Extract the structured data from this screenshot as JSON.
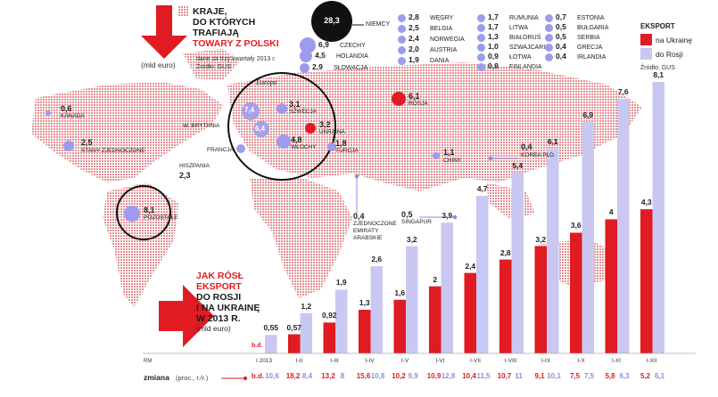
{
  "header": {
    "title_line1": "KRAJE,",
    "title_line2": "DO KTÓRYCH",
    "title_line3": "TRAFIAJĄ",
    "title_line4": "TOWARY Z POLSKI",
    "unit": "(mld euro)",
    "note_line1": "dane za trzy kwartały 2013 r.",
    "note_line2": "Źródło: GUS"
  },
  "top_country": {
    "value": "28,3",
    "name": "NIEMCY"
  },
  "legend_col1": [
    {
      "value": "6,9",
      "name": "CZECHY"
    },
    {
      "value": "4,5",
      "name": "HOLANDIA"
    },
    {
      "value": "2,9",
      "name": "SŁOWACJA"
    }
  ],
  "legend_col2": [
    {
      "value": "2,8",
      "name": "WĘGRY"
    },
    {
      "value": "2,5",
      "name": "BELGIA"
    },
    {
      "value": "2,4",
      "name": "NORWEGIA"
    },
    {
      "value": "2,0",
      "name": "AUSTRIA"
    },
    {
      "value": "1,9",
      "name": "DANIA"
    }
  ],
  "legend_col3": [
    {
      "value": "1,7",
      "name": "RUMUNIA"
    },
    {
      "value": "1,7",
      "name": "LITWA"
    },
    {
      "value": "1,3",
      "name": "BIAŁORUŚ"
    },
    {
      "value": "1,0",
      "name": "SZWAJCARIA"
    },
    {
      "value": "0,9",
      "name": "ŁOTWA"
    },
    {
      "value": "0,8",
      "name": "FINLANDIA"
    }
  ],
  "legend_col4": [
    {
      "value": "0,7",
      "name": "ESTONIA"
    },
    {
      "value": "0,5",
      "name": "BUŁGARIA"
    },
    {
      "value": "0,5",
      "name": "SERBIA"
    },
    {
      "value": "0,4",
      "name": "GRECJA"
    },
    {
      "value": "0,4",
      "name": "IRLANDIA"
    }
  ],
  "export_legend": {
    "title": "EKSPORT",
    "ukraine": "na Ukrainę",
    "russia": "do Rosji",
    "source": "Źródło: GUS"
  },
  "map": {
    "europe_label": "Europa",
    "countries": [
      {
        "value": "0,6",
        "name": "KANADA"
      },
      {
        "value": "2,5",
        "name": "STANY ZJEDNOCZONE"
      },
      {
        "value": "8,1",
        "name": "POZOSTAŁE"
      },
      {
        "value": "7,4",
        "name": "W. BRYTANIA"
      },
      {
        "value": "6,4",
        "name": "FRANCJA"
      },
      {
        "value": "2,3",
        "name": "HISZPANIA"
      },
      {
        "value": "3,1",
        "name": "SZWECJA"
      },
      {
        "value": "4,8",
        "name": "WŁOCHY"
      },
      {
        "value": "3,2",
        "name": "UKRAINA"
      },
      {
        "value": "1,8",
        "name": "TURCJA"
      },
      {
        "value": "6,1",
        "name": "ROSJA"
      },
      {
        "value": "1,1",
        "name": "CHINY"
      },
      {
        "value": "0,4",
        "name": "KOREA PŁD."
      },
      {
        "value": "0,4",
        "name": "ZJEDNOCZONE EMIRATY ARABSKIE"
      },
      {
        "value": "0,5",
        "name": "SINGAPUR"
      }
    ]
  },
  "growth_title": {
    "line1": "JAK RÓSŁ",
    "line2": "EKSPORT",
    "line3": "DO ROSJI",
    "line4": "I NA UKRAINĘ",
    "line5": "W 2013 R.",
    "unit": "(mld euro)"
  },
  "colors": {
    "ukraine": "#e11b22",
    "russia": "#c9c8f3",
    "bubble": "#9d9bec",
    "map": "#e8a7a9"
  },
  "axis_note": "RM",
  "change_row": {
    "label": "zmiana",
    "sub": "(proc., r./r.)"
  },
  "chart_data": {
    "type": "bar",
    "title": "Jak rósł eksport do Rosji i na Ukrainę w 2013 r.",
    "ylabel": "mld euro",
    "categories": [
      "I 2013",
      "I-II",
      "I-III",
      "I-IV",
      "I-V",
      "I-VI",
      "I-VII",
      "I-VIII",
      "I-IX",
      "I-X",
      "I-XI",
      "I-XII"
    ],
    "series": [
      {
        "name": "na Ukrainę",
        "values": [
          null,
          0.57,
          0.92,
          1.3,
          1.6,
          2,
          2.4,
          2.8,
          3.2,
          3.6,
          4,
          4.3
        ],
        "labels": [
          "b.d.",
          "0,57",
          "0,92",
          "1,3",
          "1,6",
          "2",
          "2,4",
          "2,8",
          "3,2",
          "3,6",
          "4",
          "4,3"
        ],
        "change": [
          "b.d.",
          "18,2",
          "13,2",
          "15,6",
          "10,2",
          "10,9",
          "10,4",
          "10,7",
          "9,1",
          "7,5",
          "5,8",
          "5,2"
        ]
      },
      {
        "name": "do Rosji",
        "values": [
          0.55,
          1.2,
          1.9,
          2.6,
          3.2,
          3.9,
          4.7,
          5.4,
          6.1,
          6.9,
          7.6,
          8.1
        ],
        "labels": [
          "0,55",
          "1,2",
          "1,9",
          "2,6",
          "3,2",
          "3,9",
          "4,7",
          "5,4",
          "6,1",
          "6,9",
          "7,6",
          "8,1"
        ],
        "change": [
          "10,6",
          "8,4",
          "8",
          "10,8",
          "9,9",
          "12,8",
          "11,5",
          "11",
          "10,1",
          "7,5",
          "6,3",
          "6,1"
        ]
      }
    ],
    "ylim": [
      0,
      8.1
    ]
  }
}
